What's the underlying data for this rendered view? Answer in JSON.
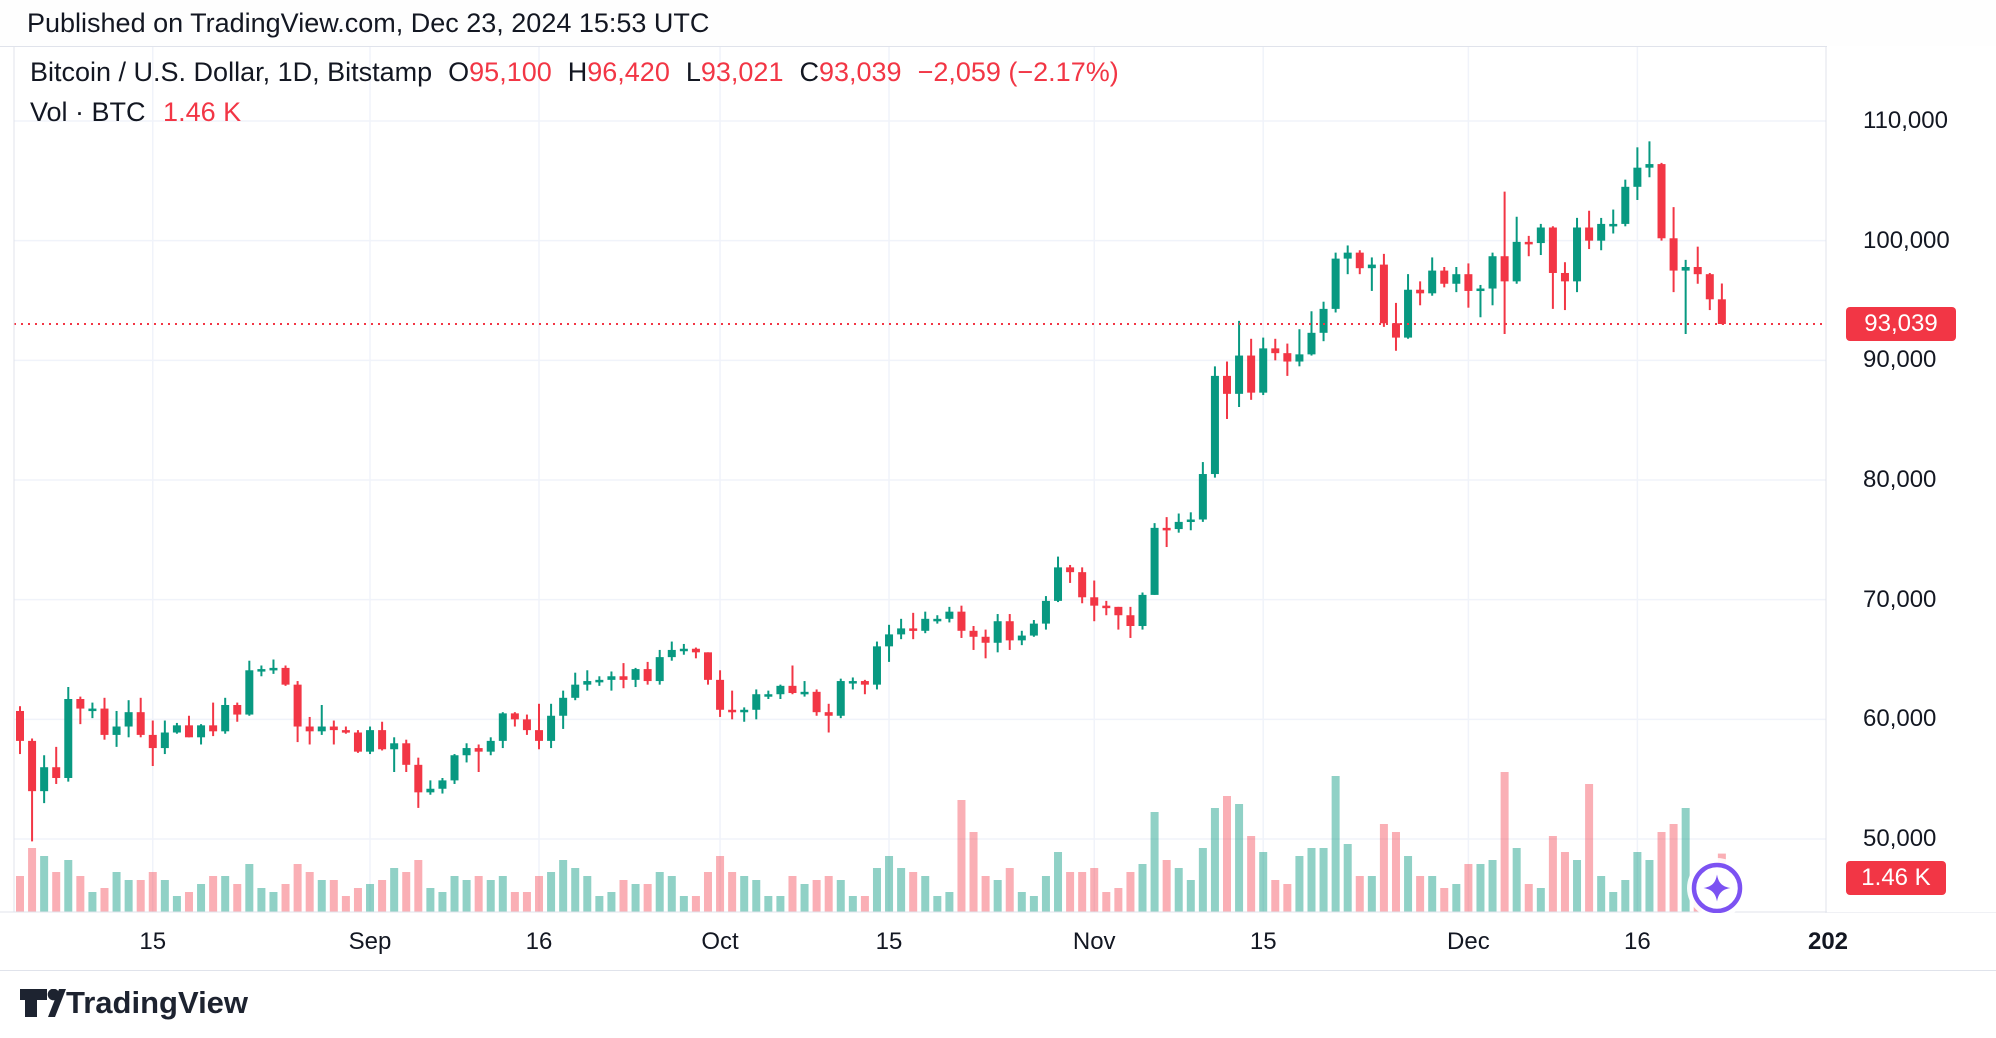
{
  "header": {
    "published": "Published on TradingView.com, Dec 23, 2024 15:53 UTC"
  },
  "legend": {
    "symbol_line": {
      "title": "Bitcoin / U.S. Dollar, 1D, Bitstamp",
      "ohlc": [
        {
          "key": "O",
          "value": "95,100"
        },
        {
          "key": "H",
          "value": "96,420"
        },
        {
          "key": "L",
          "value": "93,021"
        },
        {
          "key": "C",
          "value": "93,039"
        }
      ],
      "change": "−2,059 (−2.17%)"
    },
    "volume_line": {
      "label": "Vol · BTC",
      "value": "1.46 K"
    }
  },
  "price_axis": {
    "ticks": [
      {
        "price": 110000,
        "label": "110,000"
      },
      {
        "price": 100000,
        "label": "100,000"
      },
      {
        "price": 90000,
        "label": "90,000"
      },
      {
        "price": 80000,
        "label": "80,000"
      },
      {
        "price": 70000,
        "label": "70,000"
      },
      {
        "price": 60000,
        "label": "60,000"
      },
      {
        "price": 50000,
        "label": "50,000"
      }
    ],
    "last_price_badge": "93,039",
    "volume_badge": "1.46 K"
  },
  "time_axis": {
    "ticks": [
      {
        "index": 11,
        "label": "15"
      },
      {
        "index": 29,
        "label": "Sep"
      },
      {
        "index": 43,
        "label": "16"
      },
      {
        "index": 58,
        "label": "Oct"
      },
      {
        "index": 72,
        "label": "15"
      },
      {
        "index": 89,
        "label": "Nov"
      },
      {
        "index": 103,
        "label": "15"
      },
      {
        "index": 120,
        "label": "Dec"
      },
      {
        "index": 134,
        "label": "16"
      }
    ],
    "year_label": "202"
  },
  "footer": {
    "brand": "TradingView"
  },
  "icons": {
    "chart_marker": "sparkle-in-circle",
    "brand_logo": "tradingview-tv-mark"
  },
  "colors": {
    "text": "#131722",
    "up": "#089981",
    "down": "#F23645",
    "vol_up": "rgba(8,153,129,0.45)",
    "vol_down": "rgba(242,54,69,0.40)",
    "grid": "#F0F3FA",
    "border": "#E0E3EB",
    "badge_red": "#F23645",
    "marker_purple": "#7C52F2"
  },
  "chart_data": {
    "type": "candlestick+volume",
    "symbol": "Bitcoin / U.S. Dollar",
    "interval": "1D",
    "exchange": "Bitstamp",
    "ylim": [
      44000,
      116000
    ],
    "last_close": 93039,
    "last_volume_kbtc": 1.46,
    "legend_position": "top-left",
    "grid": true,
    "columns": [
      "date",
      "open",
      "high",
      "low",
      "close",
      "volume_kbtc"
    ],
    "rows": [
      [
        "Aug 4",
        60700,
        61100,
        57100,
        58200,
        0.9
      ],
      [
        "Aug 5",
        58200,
        58400,
        49800,
        54000,
        1.6
      ],
      [
        "Aug 6",
        54000,
        57000,
        53000,
        56000,
        1.4
      ],
      [
        "Aug 7",
        56000,
        57700,
        54600,
        55100,
        1.0
      ],
      [
        "Aug 8",
        55100,
        62700,
        54800,
        61700,
        1.3
      ],
      [
        "Aug 9",
        61700,
        61900,
        59600,
        60900,
        0.9
      ],
      [
        "Aug 10",
        60900,
        61400,
        60100,
        60900,
        0.5
      ],
      [
        "Aug 11",
        60900,
        61800,
        58300,
        58700,
        0.6
      ],
      [
        "Aug 12",
        58700,
        60700,
        57700,
        59400,
        1.0
      ],
      [
        "Aug 13",
        59400,
        61600,
        58500,
        60600,
        0.8
      ],
      [
        "Aug 14",
        60600,
        61800,
        58500,
        58700,
        0.8
      ],
      [
        "Aug 15",
        58700,
        59900,
        56100,
        57600,
        1.0
      ],
      [
        "Aug 16",
        57600,
        59900,
        57100,
        58900,
        0.8
      ],
      [
        "Aug 17",
        58900,
        59700,
        58800,
        59500,
        0.4
      ],
      [
        "Aug 18",
        59500,
        60300,
        58500,
        58500,
        0.5
      ],
      [
        "Aug 19",
        58500,
        59600,
        57900,
        59500,
        0.7
      ],
      [
        "Aug 20",
        59500,
        61400,
        58600,
        59000,
        0.9
      ],
      [
        "Aug 21",
        59000,
        61800,
        58800,
        61200,
        0.9
      ],
      [
        "Aug 22",
        61200,
        61400,
        59800,
        60400,
        0.7
      ],
      [
        "Aug 23",
        60400,
        64900,
        60300,
        64100,
        1.2
      ],
      [
        "Aug 24",
        64100,
        64500,
        63600,
        64200,
        0.6
      ],
      [
        "Aug 25",
        64200,
        65000,
        63800,
        64300,
        0.5
      ],
      [
        "Aug 26",
        64300,
        64500,
        62800,
        62900,
        0.7
      ],
      [
        "Aug 27",
        62900,
        63200,
        58100,
        59400,
        1.2
      ],
      [
        "Aug 28",
        59400,
        60200,
        57900,
        59000,
        1.0
      ],
      [
        "Aug 29",
        59000,
        61200,
        58700,
        59400,
        0.8
      ],
      [
        "Aug 30",
        59400,
        59900,
        57900,
        59100,
        0.8
      ],
      [
        "Aug 31",
        59100,
        59400,
        58800,
        58900,
        0.4
      ],
      [
        "Sep 1",
        58900,
        59100,
        57200,
        57300,
        0.6
      ],
      [
        "Sep 2",
        57300,
        59400,
        57100,
        59100,
        0.7
      ],
      [
        "Sep 3",
        59100,
        59800,
        57400,
        57500,
        0.8
      ],
      [
        "Sep 4",
        57500,
        58500,
        55600,
        58000,
        1.1
      ],
      [
        "Sep 5",
        58000,
        58300,
        55600,
        56200,
        1.0
      ],
      [
        "Sep 6",
        56200,
        56800,
        52600,
        53900,
        1.3
      ],
      [
        "Sep 7",
        53900,
        54900,
        53700,
        54200,
        0.6
      ],
      [
        "Sep 8",
        54200,
        55100,
        53800,
        54900,
        0.5
      ],
      [
        "Sep 9",
        54900,
        57100,
        54600,
        57000,
        0.9
      ],
      [
        "Sep 10",
        57000,
        58000,
        56400,
        57600,
        0.8
      ],
      [
        "Sep 11",
        57600,
        57900,
        55600,
        57300,
        0.9
      ],
      [
        "Sep 12",
        57300,
        58500,
        57000,
        58200,
        0.8
      ],
      [
        "Sep 13",
        58200,
        60600,
        57600,
        60500,
        0.9
      ],
      [
        "Sep 14",
        60500,
        60600,
        59400,
        60000,
        0.5
      ],
      [
        "Sep 15",
        60000,
        60400,
        58700,
        59100,
        0.5
      ],
      [
        "Sep 16",
        59100,
        61300,
        57500,
        58200,
        0.9
      ],
      [
        "Sep 17",
        58200,
        61300,
        57600,
        60300,
        1.0
      ],
      [
        "Sep 18",
        60300,
        62400,
        59200,
        61800,
        1.3
      ],
      [
        "Sep 19",
        61800,
        63900,
        61600,
        62900,
        1.1
      ],
      [
        "Sep 20",
        62900,
        64100,
        62400,
        63200,
        0.9
      ],
      [
        "Sep 21",
        63200,
        63600,
        62800,
        63300,
        0.4
      ],
      [
        "Sep 22",
        63300,
        64000,
        62400,
        63600,
        0.5
      ],
      [
        "Sep 23",
        63600,
        64700,
        62600,
        63300,
        0.8
      ],
      [
        "Sep 24",
        63300,
        64300,
        62700,
        64200,
        0.7
      ],
      [
        "Sep 25",
        64200,
        64800,
        62900,
        63200,
        0.7
      ],
      [
        "Sep 26",
        63200,
        65800,
        62900,
        65200,
        1.0
      ],
      [
        "Sep 27",
        65200,
        66500,
        64900,
        65800,
        0.9
      ],
      [
        "Sep 28",
        65800,
        66300,
        65400,
        65900,
        0.4
      ],
      [
        "Sep 29",
        65900,
        66000,
        65100,
        65600,
        0.4
      ],
      [
        "Sep 30",
        65600,
        65600,
        62900,
        63300,
        1.0
      ],
      [
        "Oct 1",
        63300,
        64100,
        60200,
        60800,
        1.4
      ],
      [
        "Oct 2",
        60800,
        62400,
        60000,
        60600,
        1.0
      ],
      [
        "Oct 3",
        60600,
        61000,
        59800,
        60800,
        0.9
      ],
      [
        "Oct 4",
        60800,
        62500,
        60000,
        62100,
        0.8
      ],
      [
        "Oct 5",
        62100,
        62400,
        61700,
        62100,
        0.4
      ],
      [
        "Oct 6",
        62100,
        62900,
        61700,
        62800,
        0.4
      ],
      [
        "Oct 7",
        62800,
        64500,
        62100,
        62200,
        0.9
      ],
      [
        "Oct 8",
        62200,
        63200,
        61900,
        62300,
        0.7
      ],
      [
        "Oct 9",
        62300,
        62500,
        60300,
        60600,
        0.8
      ],
      [
        "Oct 10",
        60600,
        61300,
        58900,
        60300,
        0.9
      ],
      [
        "Oct 11",
        60300,
        63400,
        60100,
        63200,
        0.8
      ],
      [
        "Oct 12",
        63200,
        63500,
        62500,
        63200,
        0.4
      ],
      [
        "Oct 13",
        63200,
        63300,
        62100,
        62900,
        0.4
      ],
      [
        "Oct 14",
        62900,
        66500,
        62500,
        66100,
        1.1
      ],
      [
        "Oct 15",
        66100,
        67900,
        64800,
        67100,
        1.4
      ],
      [
        "Oct 16",
        67100,
        68400,
        66700,
        67600,
        1.1
      ],
      [
        "Oct 17",
        67600,
        68900,
        66700,
        67400,
        1.0
      ],
      [
        "Oct 18",
        67400,
        69000,
        67200,
        68400,
        0.9
      ],
      [
        "Oct 19",
        68400,
        68700,
        68000,
        68400,
        0.4
      ],
      [
        "Oct 20",
        68400,
        69400,
        68100,
        69000,
        0.5
      ],
      [
        "Oct 21",
        69000,
        69500,
        66800,
        67400,
        2.8
      ],
      [
        "Oct 22",
        67400,
        67800,
        65800,
        66900,
        2.0
      ],
      [
        "Oct 23",
        66900,
        67500,
        65100,
        66400,
        0.9
      ],
      [
        "Oct 24",
        66400,
        68800,
        65600,
        68200,
        0.8
      ],
      [
        "Oct 25",
        68200,
        68800,
        65800,
        66600,
        1.1
      ],
      [
        "Oct 26",
        66600,
        67400,
        66200,
        67000,
        0.5
      ],
      [
        "Oct 27",
        67000,
        68300,
        66900,
        68000,
        0.4
      ],
      [
        "Oct 28",
        68000,
        70300,
        67500,
        69900,
        0.9
      ],
      [
        "Oct 29",
        69900,
        73600,
        69800,
        72700,
        1.5
      ],
      [
        "Oct 30",
        72700,
        72900,
        71400,
        72300,
        1.0
      ],
      [
        "Oct 31",
        72300,
        72700,
        69700,
        70200,
        1.0
      ],
      [
        "Nov 1",
        70200,
        71600,
        68200,
        69500,
        1.1
      ],
      [
        "Nov 2",
        69500,
        69900,
        68700,
        69400,
        0.5
      ],
      [
        "Nov 3",
        69400,
        69400,
        67500,
        68700,
        0.6
      ],
      [
        "Nov 4",
        68700,
        69400,
        66800,
        67800,
        1.0
      ],
      [
        "Nov 5",
        67800,
        70600,
        67500,
        70400,
        1.2
      ],
      [
        "Nov 6",
        70400,
        76400,
        70400,
        76000,
        2.5
      ],
      [
        "Nov 7",
        76000,
        76900,
        74400,
        75900,
        1.3
      ],
      [
        "Nov 8",
        75900,
        77200,
        75600,
        76500,
        1.1
      ],
      [
        "Nov 9",
        76500,
        77300,
        75800,
        76700,
        0.8
      ],
      [
        "Nov 10",
        76700,
        81500,
        76500,
        80500,
        1.6
      ],
      [
        "Nov 11",
        80500,
        89500,
        80200,
        88700,
        2.6
      ],
      [
        "Nov 12",
        88700,
        89900,
        85100,
        87200,
        2.9
      ],
      [
        "Nov 13",
        87200,
        93300,
        86100,
        90400,
        2.7
      ],
      [
        "Nov 14",
        90400,
        91800,
        86700,
        87300,
        1.9
      ],
      [
        "Nov 15",
        87300,
        91900,
        87100,
        91000,
        1.5
      ],
      [
        "Nov 16",
        91000,
        91800,
        90000,
        90600,
        0.8
      ],
      [
        "Nov 17",
        90600,
        91400,
        88700,
        89900,
        0.7
      ],
      [
        "Nov 18",
        89900,
        92600,
        89500,
        90500,
        1.4
      ],
      [
        "Nov 19",
        90500,
        94100,
        90400,
        92300,
        1.6
      ],
      [
        "Nov 20",
        92300,
        94900,
        91600,
        94300,
        1.6
      ],
      [
        "Nov 21",
        94300,
        99000,
        94000,
        98500,
        3.4
      ],
      [
        "Nov 22",
        98500,
        99600,
        97200,
        99000,
        1.7
      ],
      [
        "Nov 23",
        99000,
        99200,
        97200,
        97700,
        0.9
      ],
      [
        "Nov 24",
        97700,
        98600,
        95800,
        98000,
        0.9
      ],
      [
        "Nov 25",
        98000,
        98900,
        92800,
        93100,
        2.2
      ],
      [
        "Nov 26",
        93100,
        94800,
        90800,
        91900,
        2.0
      ],
      [
        "Nov 27",
        91900,
        97200,
        91800,
        95900,
        1.4
      ],
      [
        "Nov 28",
        95900,
        96600,
        94600,
        95600,
        0.9
      ],
      [
        "Nov 29",
        95600,
        98600,
        95400,
        97500,
        0.9
      ],
      [
        "Nov 30",
        97500,
        97800,
        96100,
        96400,
        0.6
      ],
      [
        "Dec 1",
        96400,
        97800,
        95700,
        97200,
        0.7
      ],
      [
        "Dec 2",
        97200,
        98100,
        94400,
        95800,
        1.2
      ],
      [
        "Dec 3",
        95800,
        96300,
        93600,
        96000,
        1.2
      ],
      [
        "Dec 4",
        96000,
        99000,
        94600,
        98700,
        1.3
      ],
      [
        "Dec 5",
        98700,
        104100,
        92200,
        96600,
        3.5
      ],
      [
        "Dec 6",
        96600,
        102000,
        96400,
        99900,
        1.6
      ],
      [
        "Dec 7",
        99900,
        100400,
        98700,
        99800,
        0.7
      ],
      [
        "Dec 8",
        99800,
        101400,
        98800,
        101100,
        0.6
      ],
      [
        "Dec 9",
        101100,
        101200,
        94300,
        97300,
        1.9
      ],
      [
        "Dec 10",
        97300,
        98200,
        94200,
        96600,
        1.5
      ],
      [
        "Dec 11",
        96600,
        101900,
        95700,
        101100,
        1.3
      ],
      [
        "Dec 12",
        101100,
        102500,
        99300,
        100000,
        3.2
      ],
      [
        "Dec 13",
        100000,
        101900,
        99200,
        101400,
        0.9
      ],
      [
        "Dec 14",
        101400,
        102600,
        100600,
        101400,
        0.5
      ],
      [
        "Dec 15",
        101400,
        105100,
        101200,
        104500,
        0.8
      ],
      [
        "Dec 16",
        104500,
        107800,
        103400,
        106100,
        1.5
      ],
      [
        "Dec 17",
        106100,
        108300,
        105300,
        106400,
        1.3
      ],
      [
        "Dec 18",
        106400,
        106500,
        100000,
        100200,
        2.0
      ],
      [
        "Dec 19",
        100200,
        102800,
        95700,
        97500,
        2.2
      ],
      [
        "Dec 20",
        97500,
        98400,
        92200,
        97800,
        2.6
      ],
      [
        "Dec 21",
        97800,
        99500,
        96400,
        97200,
        0.9
      ],
      [
        "Dec 22",
        97200,
        97300,
        94200,
        95100,
        0.8
      ],
      [
        "Dec 23",
        95100,
        96420,
        93021,
        93039,
        1.46
      ]
    ]
  }
}
